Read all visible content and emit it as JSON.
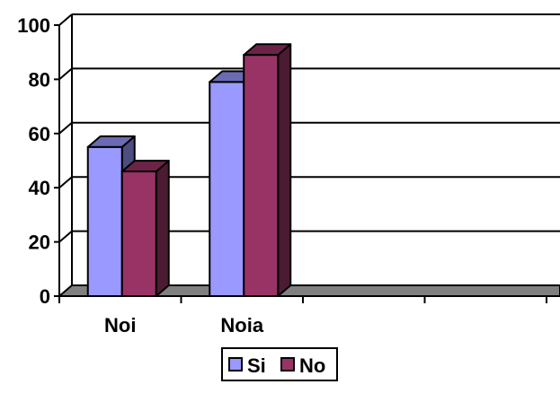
{
  "chart_data": {
    "type": "bar",
    "style": "3d-clustered-column",
    "categories": [
      "Noi",
      "Noia",
      "",
      ""
    ],
    "series": [
      {
        "name": "Si",
        "values": [
          55,
          79,
          null,
          null
        ],
        "color": "#9999ff"
      },
      {
        "name": "No",
        "values": [
          46,
          89,
          null,
          null
        ],
        "color": "#993366"
      }
    ],
    "ylim": [
      0,
      100
    ],
    "yticks": [
      0,
      20,
      40,
      60,
      80,
      100
    ],
    "grid": true,
    "legend_position": "bottom-center",
    "floor_color": "#808080"
  }
}
